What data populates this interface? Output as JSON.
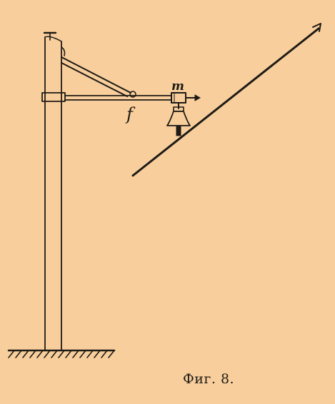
{
  "labels": {
    "m": "m",
    "f": "f"
  },
  "caption": "Фиг. 8."
}
